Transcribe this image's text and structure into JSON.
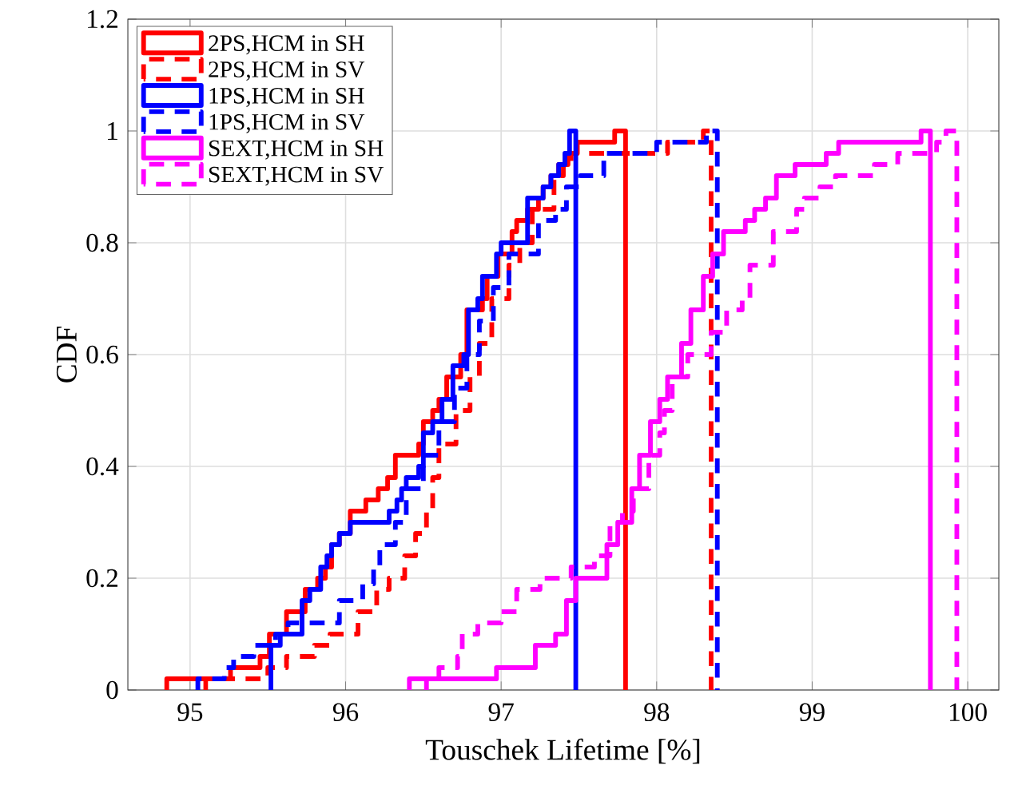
{
  "chart_data": {
    "type": "step",
    "xlabel": "Touschek Lifetime [%]",
    "ylabel": "CDF",
    "xlim": [
      94.6,
      100.2
    ],
    "ylim": [
      0,
      1.2
    ],
    "xticks": [
      95,
      96,
      97,
      98,
      99,
      100
    ],
    "yticks": [
      0,
      0.2,
      0.4,
      0.6,
      0.8,
      1,
      1.2
    ],
    "grid": true,
    "legend": "top left",
    "series": [
      {
        "name": "2PS,HCM in SH",
        "color": "#ff0000",
        "line_style": "solid",
        "x": [
          94.85,
          94.85,
          95.26,
          95.45,
          95.51,
          95.62,
          95.74,
          95.82,
          95.87,
          95.91,
          95.96,
          96.03,
          96.13,
          96.21,
          96.27,
          96.32,
          96.47,
          96.5,
          96.56,
          96.6,
          96.65,
          96.74,
          96.78,
          96.88,
          96.91,
          96.98,
          97.07,
          97.1,
          97.17,
          97.24,
          97.27,
          97.32,
          97.37,
          97.43,
          97.49,
          97.73,
          97.8
        ],
        "values": [
          0,
          0.02,
          0.04,
          0.06,
          0.1,
          0.14,
          0.18,
          0.2,
          0.22,
          0.26,
          0.28,
          0.32,
          0.34,
          0.36,
          0.38,
          0.42,
          0.44,
          0.48,
          0.5,
          0.52,
          0.56,
          0.6,
          0.68,
          0.7,
          0.74,
          0.78,
          0.82,
          0.84,
          0.86,
          0.88,
          0.9,
          0.92,
          0.94,
          0.96,
          0.98,
          1,
          0
        ]
      },
      {
        "name": "2PS,HCM in SV",
        "color": "#ff0000",
        "line_style": "dashed",
        "x": [
          95.1,
          95.1,
          95.5,
          95.62,
          95.8,
          95.9,
          96.08,
          96.2,
          96.28,
          96.38,
          96.45,
          96.52,
          96.56,
          96.6,
          96.71,
          96.8,
          96.86,
          96.94,
          97.05,
          97.12,
          97.2,
          97.34,
          97.4,
          97.45,
          98.07,
          98.3,
          98.35
        ],
        "values": [
          0,
          0.02,
          0.04,
          0.06,
          0.08,
          0.1,
          0.14,
          0.18,
          0.2,
          0.24,
          0.28,
          0.32,
          0.38,
          0.44,
          0.5,
          0.56,
          0.62,
          0.7,
          0.76,
          0.8,
          0.86,
          0.92,
          0.94,
          0.96,
          0.98,
          1,
          0
        ]
      },
      {
        "name": "1PS,HCM in SH",
        "color": "#0000ff",
        "line_style": "solid",
        "x": [
          95.52,
          95.52,
          95.58,
          95.72,
          95.77,
          95.84,
          95.88,
          95.91,
          95.96,
          96.03,
          96.28,
          96.33,
          96.36,
          96.39,
          96.47,
          96.5,
          96.56,
          96.62,
          96.69,
          96.76,
          96.79,
          96.85,
          96.88,
          96.97,
          97.0,
          97.17,
          97.27,
          97.32,
          97.37,
          97.41,
          97.44,
          97.48
        ],
        "values": [
          0,
          0.08,
          0.1,
          0.16,
          0.18,
          0.22,
          0.24,
          0.26,
          0.28,
          0.3,
          0.32,
          0.34,
          0.36,
          0.38,
          0.4,
          0.46,
          0.48,
          0.52,
          0.58,
          0.6,
          0.68,
          0.7,
          0.74,
          0.78,
          0.8,
          0.88,
          0.9,
          0.92,
          0.94,
          0.96,
          1,
          0
        ]
      },
      {
        "name": "1PS,HCM in SV",
        "color": "#0000ff",
        "line_style": "dashed",
        "x": [
          95.05,
          95.05,
          95.22,
          95.28,
          95.41,
          95.55,
          95.63,
          95.96,
          96.11,
          96.18,
          96.22,
          96.32,
          96.39,
          96.5,
          96.6,
          96.7,
          96.78,
          96.86,
          96.95,
          97.05,
          97.24,
          97.35,
          97.42,
          97.51,
          97.66,
          98.0,
          98.32,
          98.39
        ],
        "values": [
          0,
          0.02,
          0.04,
          0.06,
          0.08,
          0.1,
          0.12,
          0.16,
          0.19,
          0.22,
          0.26,
          0.3,
          0.36,
          0.42,
          0.48,
          0.54,
          0.6,
          0.66,
          0.72,
          0.78,
          0.84,
          0.86,
          0.9,
          0.92,
          0.96,
          0.98,
          1,
          0
        ]
      },
      {
        "name": "SEXT,HCM in SH",
        "color": "#ff00ff",
        "line_style": "solid",
        "x": [
          96.41,
          96.41,
          96.97,
          97.22,
          97.35,
          97.42,
          97.48,
          97.68,
          97.75,
          97.84,
          97.89,
          97.96,
          98.02,
          98.07,
          98.16,
          98.22,
          98.3,
          98.36,
          98.43,
          98.57,
          98.63,
          98.7,
          98.77,
          98.89,
          99.09,
          99.17,
          99.7,
          99.76
        ],
        "values": [
          0,
          0.02,
          0.04,
          0.08,
          0.1,
          0.16,
          0.2,
          0.26,
          0.3,
          0.36,
          0.42,
          0.48,
          0.52,
          0.56,
          0.62,
          0.68,
          0.74,
          0.78,
          0.82,
          0.84,
          0.86,
          0.88,
          0.92,
          0.94,
          0.96,
          0.98,
          1,
          0
        ]
      },
      {
        "name": "SEXT,HCM in SV",
        "color": "#ff00ff",
        "line_style": "dashed",
        "x": [
          96.52,
          96.52,
          96.6,
          96.72,
          96.75,
          96.85,
          97.0,
          97.1,
          97.25,
          97.45,
          97.6,
          97.7,
          97.78,
          97.85,
          97.95,
          98.02,
          98.05,
          98.1,
          98.2,
          98.35,
          98.45,
          98.55,
          98.6,
          98.75,
          98.9,
          98.95,
          99.05,
          99.15,
          99.4,
          99.55,
          99.8,
          99.86,
          99.93
        ],
        "values": [
          0,
          0.02,
          0.04,
          0.06,
          0.1,
          0.12,
          0.14,
          0.18,
          0.2,
          0.22,
          0.24,
          0.3,
          0.32,
          0.36,
          0.42,
          0.46,
          0.5,
          0.56,
          0.6,
          0.64,
          0.68,
          0.7,
          0.76,
          0.82,
          0.86,
          0.88,
          0.9,
          0.92,
          0.94,
          0.96,
          0.98,
          1,
          0
        ]
      }
    ]
  }
}
